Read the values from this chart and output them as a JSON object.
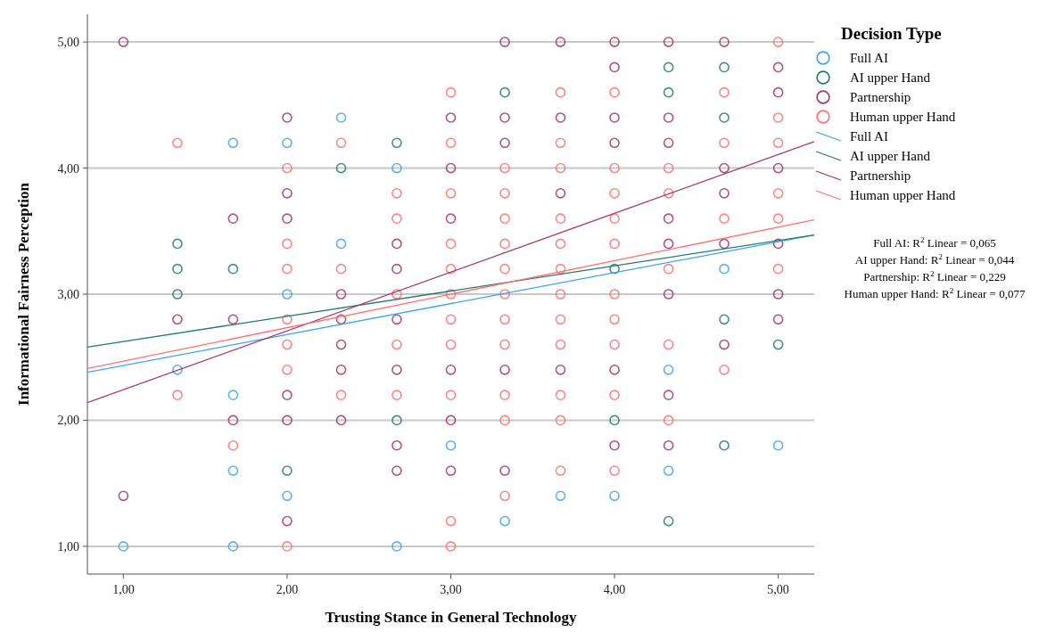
{
  "chart_data": {
    "type": "scatter",
    "xlabel": "Trusting Stance in General Technology",
    "ylabel": "Informational Fairness Perception",
    "legend_title": "Decision Type",
    "legend": "right",
    "grid": "y",
    "xlim": [
      0.78,
      5.22
    ],
    "ylim": [
      0.78,
      5.22
    ],
    "xticks": [
      {
        "value": 1,
        "label": "1,00"
      },
      {
        "value": 2,
        "label": "2,00"
      },
      {
        "value": 3,
        "label": "3,00"
      },
      {
        "value": 4,
        "label": "4,00"
      },
      {
        "value": 5,
        "label": "5,00"
      }
    ],
    "yticks": [
      {
        "value": 1,
        "label": "1,00"
      },
      {
        "value": 2,
        "label": "2,00"
      },
      {
        "value": 3,
        "label": "3,00"
      },
      {
        "value": 4,
        "label": "4,00"
      },
      {
        "value": 5,
        "label": "5,00"
      }
    ],
    "series": [
      {
        "name": "Full AI",
        "marker": "circle",
        "color": "#3ba4ec",
        "x": [
          1,
          1.33,
          1.67,
          1.67,
          1.67,
          1.67,
          2,
          2,
          2,
          2.33,
          2.33,
          2.67,
          2.67,
          3,
          3.33,
          3.67,
          4,
          4.33,
          4.33,
          4.67,
          5
        ],
        "values": [
          1.0,
          2.4,
          4.2,
          2.2,
          1.6,
          1.0,
          4.2,
          3.0,
          1.4,
          4.4,
          3.4,
          4.0,
          1.0,
          1.8,
          1.2,
          1.4,
          1.4,
          2.4,
          1.6,
          3.2,
          1.8
        ]
      },
      {
        "name": "AI upper Hand",
        "marker": "circle",
        "color": "#217a73",
        "x": [
          1.33,
          1.33,
          1.33,
          1.67,
          2,
          2.33,
          2.67,
          2.67,
          3.33,
          4,
          4,
          4.33,
          4.33,
          4.33,
          4.67,
          4.67,
          4.67,
          4.67,
          5
        ],
        "values": [
          3.4,
          3.2,
          3.0,
          3.2,
          1.6,
          4.0,
          4.2,
          2.0,
          4.6,
          3.2,
          2.0,
          4.8,
          4.6,
          1.2,
          4.8,
          4.4,
          2.8,
          1.8,
          2.6
        ]
      },
      {
        "name": "Partnership",
        "marker": "circle",
        "color": "#a3336b",
        "x": [
          1,
          1,
          1.33,
          1.67,
          1.67,
          1.67,
          2,
          2,
          2,
          2,
          2,
          2,
          2.33,
          2.33,
          2.33,
          2.33,
          2.33,
          2.67,
          2.67,
          2.67,
          2.67,
          2.67,
          2.67,
          3,
          3,
          3,
          3,
          3,
          3,
          3.33,
          3.33,
          3.33,
          3.33,
          3.33,
          3.67,
          3.67,
          3.67,
          3.67,
          4,
          4,
          4,
          4,
          4,
          4,
          4.33,
          4.33,
          4.33,
          4.33,
          4.33,
          4.33,
          4.33,
          4.33,
          4.67,
          4.67,
          4.67,
          4.67,
          4.67,
          5,
          5,
          5,
          5,
          5,
          5
        ],
        "values": [
          5.0,
          1.4,
          2.8,
          3.6,
          2.8,
          2.0,
          4.4,
          3.8,
          3.6,
          2.2,
          2.0,
          1.2,
          3.0,
          2.8,
          2.6,
          2.4,
          2.0,
          3.4,
          3.2,
          2.8,
          2.4,
          1.8,
          1.6,
          4.4,
          4.0,
          3.6,
          2.4,
          2.0,
          1.6,
          5.0,
          4.4,
          4.2,
          2.4,
          1.6,
          5.0,
          4.4,
          3.8,
          2.4,
          5.0,
          4.8,
          4.4,
          4.2,
          2.4,
          1.8,
          5.0,
          4.4,
          4.2,
          3.6,
          3.4,
          3.0,
          2.2,
          1.8,
          5.0,
          4.0,
          3.8,
          3.4,
          2.6,
          4.8,
          4.6,
          4.0,
          3.4,
          3.0,
          2.8
        ]
      },
      {
        "name": "Human upper Hand",
        "marker": "circle",
        "color": "#ff6f6f",
        "x": [
          1.33,
          1.33,
          1.67,
          2,
          2,
          2,
          2,
          2,
          2,
          2,
          2.33,
          2.33,
          2.33,
          2.67,
          2.67,
          2.67,
          2.67,
          2.67,
          3,
          3,
          3,
          3,
          3,
          3,
          3,
          3,
          3,
          3,
          3,
          3.33,
          3.33,
          3.33,
          3.33,
          3.33,
          3.33,
          3.33,
          3.33,
          3.33,
          3.33,
          3.33,
          3.67,
          3.67,
          3.67,
          3.67,
          3.67,
          3.67,
          3.67,
          3.67,
          3.67,
          3.67,
          3.67,
          3.67,
          4,
          4,
          4,
          4,
          4,
          4,
          4,
          4,
          4,
          4,
          4.33,
          4.33,
          4.33,
          4.33,
          4.33,
          4.67,
          4.67,
          4.67,
          4.67,
          5,
          5,
          5,
          5,
          5,
          5
        ],
        "values": [
          4.2,
          2.2,
          1.8,
          4.0,
          3.4,
          3.2,
          2.8,
          2.6,
          2.4,
          1.0,
          4.2,
          3.2,
          2.2,
          3.8,
          3.6,
          3.0,
          2.6,
          2.2,
          4.6,
          4.2,
          3.8,
          3.4,
          3.2,
          3.0,
          2.8,
          2.6,
          2.2,
          1.2,
          1.0,
          4.0,
          3.8,
          3.6,
          3.4,
          3.2,
          3.0,
          2.8,
          2.6,
          2.2,
          2.0,
          1.4,
          4.6,
          4.2,
          4.0,
          3.6,
          3.4,
          3.2,
          3.0,
          2.8,
          2.6,
          2.2,
          2.0,
          1.6,
          4.6,
          4.0,
          3.8,
          3.6,
          3.4,
          3.0,
          2.8,
          2.6,
          2.2,
          1.6,
          4.0,
          3.8,
          3.2,
          2.6,
          2.0,
          4.6,
          4.2,
          3.6,
          2.4,
          5.0,
          4.4,
          4.2,
          3.8,
          3.6,
          3.2
        ]
      },
      {
        "name": "Full AI",
        "type": "line",
        "marker": "none",
        "color": "#3ba4ec",
        "x": [
          0.78,
          5.22
        ],
        "values": [
          2.38,
          3.47
        ]
      },
      {
        "name": "AI upper Hand",
        "type": "line",
        "marker": "none",
        "color": "#217a73",
        "x": [
          0.78,
          5.22
        ],
        "values": [
          2.58,
          3.47
        ]
      },
      {
        "name": "Partnership",
        "type": "line",
        "marker": "none",
        "color": "#a3336b",
        "x": [
          0.78,
          5.22
        ],
        "values": [
          2.14,
          4.21
        ]
      },
      {
        "name": "Human upper Hand",
        "type": "line",
        "marker": "none",
        "color": "#ff6f6f",
        "x": [
          0.78,
          5.22
        ],
        "values": [
          2.41,
          3.59
        ]
      }
    ],
    "annotations": [
      "Full AI: R$^{2}$ Linear = 0,065",
      "AI upper Hand: R$^{2}$ Linear = 0,044",
      "Partnership: R$^{2}$ Linear = 0,229",
      "Human upper Hand: R$^{2}$ Linear = 0,077"
    ]
  }
}
